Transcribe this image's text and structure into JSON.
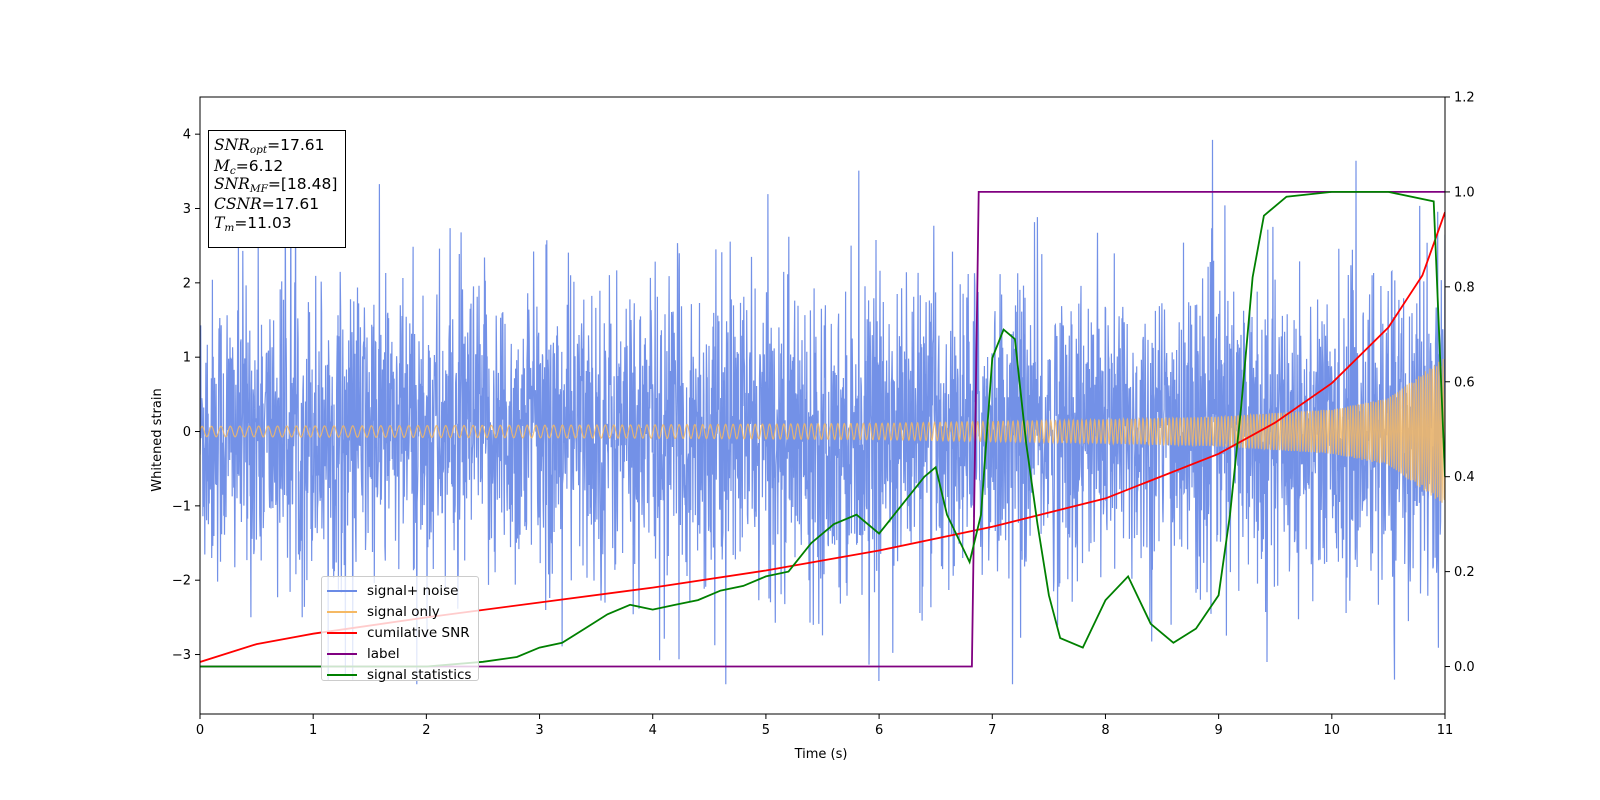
{
  "chart_data": {
    "type": "line",
    "xlabel": "Time (s)",
    "ylabel": "Whitened strain",
    "xlim": [
      0,
      11
    ],
    "ylim_left": [
      -3.8,
      4.5
    ],
    "ylim_right": [
      -0.1,
      1.2
    ],
    "x_ticks": [
      "0",
      "1",
      "2",
      "3",
      "4",
      "5",
      "6",
      "7",
      "8",
      "9",
      "10",
      "11"
    ],
    "y_left_ticks": [
      "−3",
      "−2",
      "−1",
      "0",
      "1",
      "2",
      "3",
      "4"
    ],
    "y_right_ticks": [
      "0.0",
      "0.2",
      "0.4",
      "0.6",
      "0.8",
      "1.0",
      "1.2"
    ],
    "series": [
      {
        "name": "signal+ noise",
        "color": "#6b8be6",
        "axis": "left",
        "description_kind": "noise",
        "x": [
          0,
          11
        ],
        "y_approx_range": [
          -3.4,
          4.2
        ]
      },
      {
        "name": "signal only",
        "color": "#f5b964",
        "axis": "left",
        "x": [
          0,
          2,
          4,
          6,
          8,
          9,
          10,
          10.5,
          11
        ],
        "envelope": [
          0.07,
          0.08,
          0.09,
          0.11,
          0.16,
          0.2,
          0.3,
          0.45,
          1.0
        ]
      },
      {
        "name": "cumilative SNR",
        "color": "#ff0000",
        "axis": "left",
        "x": [
          0,
          0.5,
          1,
          2,
          3,
          4,
          5,
          6,
          7,
          8,
          9,
          9.5,
          10,
          10.5,
          10.8,
          11
        ],
        "y": [
          -3.1,
          -2.86,
          -2.72,
          -2.5,
          -2.3,
          -2.1,
          -1.87,
          -1.6,
          -1.28,
          -0.9,
          -0.3,
          0.12,
          0.65,
          1.4,
          2.1,
          2.95
        ]
      },
      {
        "name": "label",
        "color": "#800080",
        "axis": "right",
        "x": [
          0,
          6.82,
          6.88,
          11
        ],
        "y": [
          0,
          0,
          1,
          1
        ]
      },
      {
        "name": "signal statistics",
        "color": "#008000",
        "axis": "right",
        "x": [
          0,
          2.0,
          2.5,
          2.8,
          3.0,
          3.2,
          3.4,
          3.6,
          3.8,
          4.0,
          4.2,
          4.4,
          4.6,
          4.8,
          5.0,
          5.2,
          5.4,
          5.6,
          5.8,
          6.0,
          6.2,
          6.4,
          6.5,
          6.6,
          6.8,
          6.9,
          7.0,
          7.1,
          7.2,
          7.3,
          7.4,
          7.5,
          7.6,
          7.8,
          8.0,
          8.2,
          8.4,
          8.6,
          8.8,
          9.0,
          9.1,
          9.2,
          9.3,
          9.4,
          9.6,
          10.0,
          10.5,
          10.9,
          11.0
        ],
        "y": [
          0.0,
          0.0,
          0.01,
          0.02,
          0.04,
          0.05,
          0.08,
          0.11,
          0.13,
          0.12,
          0.13,
          0.14,
          0.16,
          0.17,
          0.19,
          0.2,
          0.26,
          0.3,
          0.32,
          0.28,
          0.34,
          0.4,
          0.42,
          0.32,
          0.22,
          0.32,
          0.65,
          0.71,
          0.69,
          0.47,
          0.3,
          0.15,
          0.06,
          0.04,
          0.14,
          0.19,
          0.09,
          0.05,
          0.08,
          0.15,
          0.32,
          0.55,
          0.82,
          0.95,
          0.99,
          1.0,
          1.0,
          0.98,
          0.4
        ]
      }
    ]
  },
  "info_box": {
    "snr_opt_label": "SNR",
    "snr_opt_sub": "opt",
    "snr_opt_value": "=17.61",
    "mc_label": "M",
    "mc_sub": "c",
    "mc_value": "=6.12",
    "snr_mf_label": "SNR",
    "snr_mf_sub": "MF",
    "snr_mf_value": "=[18.48]",
    "csnr_label": "CSNR",
    "csnr_value": "=17.61",
    "tm_label": "T",
    "tm_sub": "m",
    "tm_value": "=11.03"
  },
  "legend": [
    {
      "label": "signal+ noise",
      "color": "#6b8be6"
    },
    {
      "label": "signal only",
      "color": "#f5b964"
    },
    {
      "label": "cumilative SNR",
      "color": "#ff0000"
    },
    {
      "label": "label",
      "color": "#800080"
    },
    {
      "label": "signal statistics",
      "color": "#008000"
    }
  ]
}
